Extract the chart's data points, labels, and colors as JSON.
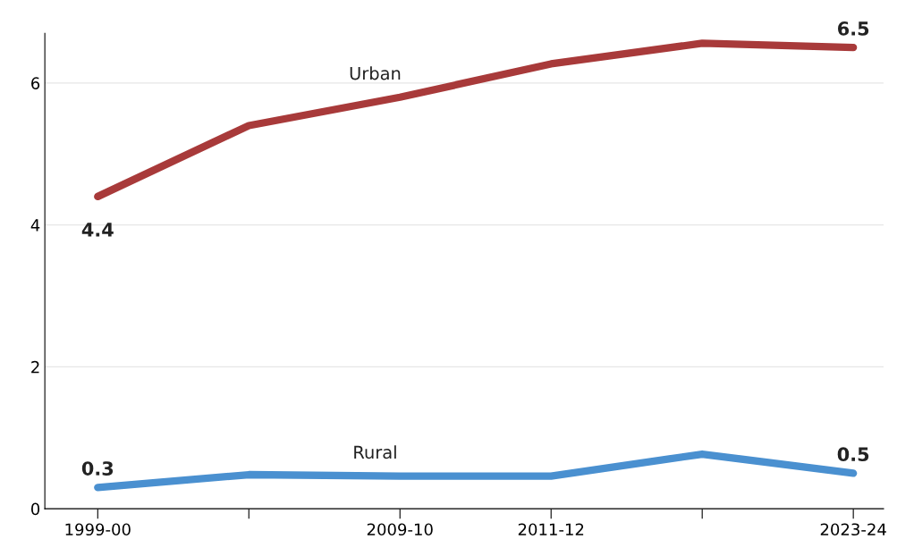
{
  "chart_data": {
    "type": "line",
    "categories": [
      "1999-00",
      null,
      "2009-10",
      "2011-12",
      null,
      "2023-24"
    ],
    "series": [
      {
        "name": "Urban",
        "color": "#a83a3a",
        "values": [
          4.4,
          5.4,
          5.8,
          6.27,
          6.56,
          6.5
        ],
        "value_labels": [
          "4.4",
          null,
          null,
          null,
          null,
          "6.5"
        ]
      },
      {
        "name": "Rural",
        "color": "#4a90d0",
        "values": [
          0.3,
          0.48,
          0.46,
          0.46,
          0.77,
          0.5
        ],
        "value_labels": [
          "0.3",
          null,
          null,
          null,
          null,
          "0.5"
        ]
      }
    ],
    "ylim": [
      0,
      6.7
    ],
    "yticks": [
      0,
      2,
      4,
      6
    ],
    "grid": "y",
    "marker": "none",
    "line_style": "solid"
  }
}
